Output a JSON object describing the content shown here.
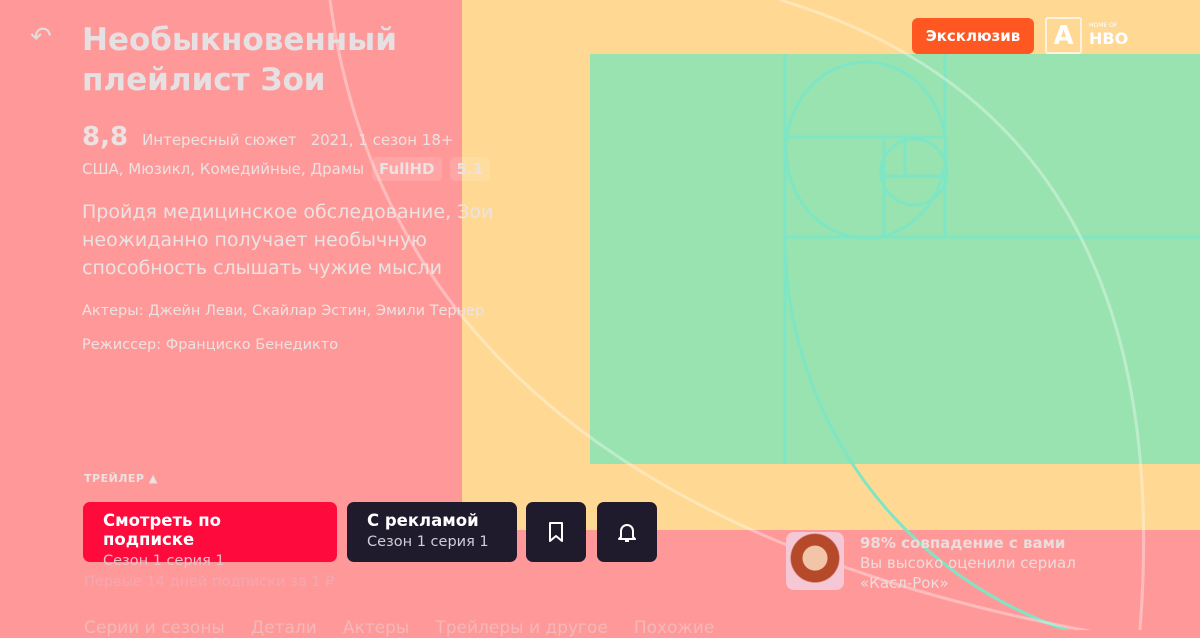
{
  "header": {
    "back_icon": "back-arrow-icon",
    "title": "Необыкновенный плейлист Зои",
    "exclusive_badge": "Эксклюзив",
    "brand_logo": "A",
    "brand_tagline": "HOME OF",
    "partner_logo": "HBO"
  },
  "meta": {
    "rating": "8,8",
    "rating_label": "Интересный сюжет",
    "year_season_age": "2021, 1 сезон 18+",
    "genres": "США, Мюзикл, Комедийные, Драмы",
    "tags": [
      "FullHD",
      "5.1"
    ]
  },
  "description": "Пройдя медицинское обследование, Зои неожиданно получает необычную способность слышать чужие мысли",
  "actors": "Актеры: Джейн Леви, Скайлар Эстин, Эмили Тернер",
  "director": "Режиссер: Франциско Бенедикто",
  "trailer": "ТРЕЙЛЕР ▲",
  "buttons": {
    "subscribe": {
      "label": "Смотреть по подписке",
      "sub": "Сезон 1 серия 1"
    },
    "ads": {
      "label": "С рекламой",
      "sub": "Сезон 1 серия 1"
    },
    "bookmark_icon": "bookmark-icon",
    "bell_icon": "bell-icon"
  },
  "promo": "Первые 14 дней подписки за 1 ₽",
  "tabs": [
    "Серии и сезоны",
    "Детали",
    "Актеры",
    "Трейлеры и другое",
    "Похожие"
  ],
  "match": {
    "title": "98% совпадение с вами",
    "line1": "Вы высоко оценили сериал",
    "line2": "«Касл-Рок»"
  },
  "colors": {
    "primary": "#ff0a3c",
    "dark": "#1f1b2c",
    "exclusive": "#ff5722"
  }
}
